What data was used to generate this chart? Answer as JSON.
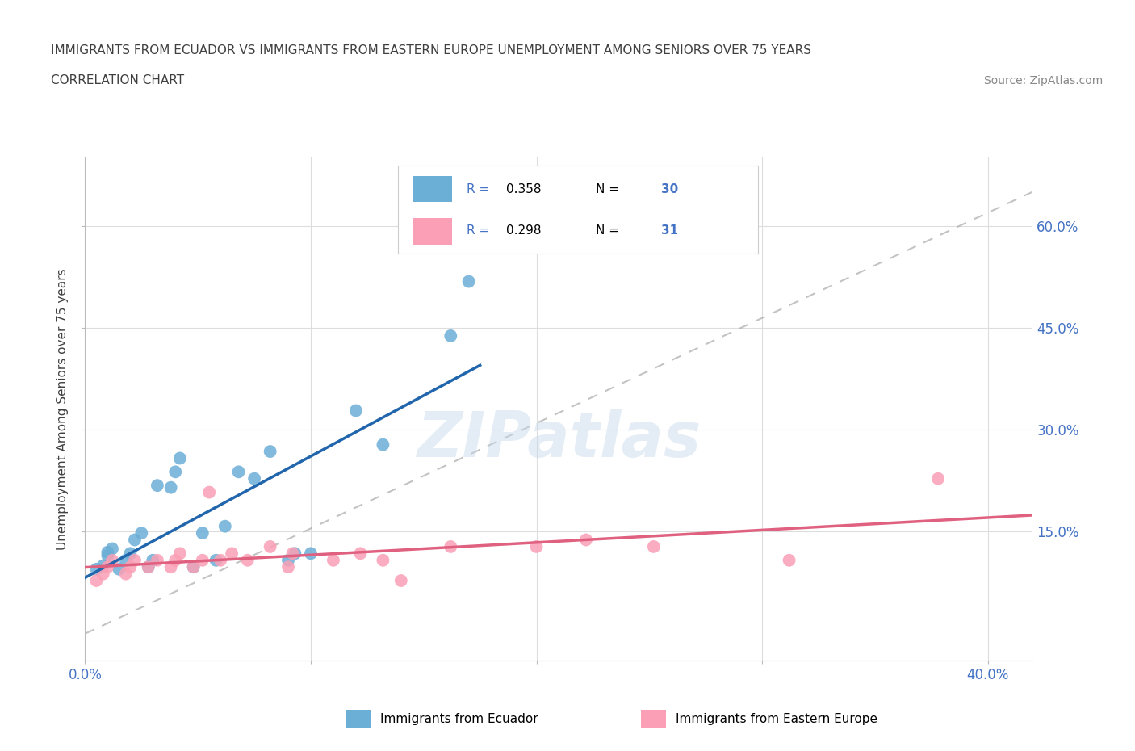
{
  "title_line1": "IMMIGRANTS FROM ECUADOR VS IMMIGRANTS FROM EASTERN EUROPE UNEMPLOYMENT AMONG SENIORS OVER 75 YEARS",
  "title_line2": "CORRELATION CHART",
  "source": "Source: ZipAtlas.com",
  "ylabel": "Unemployment Among Seniors over 75 years",
  "xlim": [
    0.0,
    0.42
  ],
  "ylim": [
    -0.04,
    0.7
  ],
  "ecuador_color": "#6baed6",
  "eastern_europe_color": "#fa9fb5",
  "ecuador_line_color": "#2166ac",
  "eastern_europe_line_color": "#e06080",
  "diag_line_color": "#aaaaaa",
  "ecuador_R": 0.358,
  "ecuador_N": 30,
  "eastern_europe_R": 0.298,
  "eastern_europe_N": 31,
  "ecuador_label": "Immigrants from Ecuador",
  "eastern_europe_label": "Immigrants from Eastern Europe",
  "watermark": "ZIPatlas",
  "blue_text_color": "#4472c4",
  "grid_color": "#dddddd",
  "title_color": "#404040",
  "ecuador_x": [
    0.005,
    0.008,
    0.01,
    0.01,
    0.012,
    0.015,
    0.018,
    0.02,
    0.022,
    0.025,
    0.028,
    0.03,
    0.032,
    0.038,
    0.04,
    0.042,
    0.048,
    0.052,
    0.058,
    0.062,
    0.068,
    0.075,
    0.082,
    0.09,
    0.093,
    0.1,
    0.12,
    0.132,
    0.162,
    0.17
  ],
  "ecuador_y": [
    0.095,
    0.1,
    0.115,
    0.12,
    0.125,
    0.095,
    0.108,
    0.118,
    0.138,
    0.148,
    0.098,
    0.108,
    0.218,
    0.215,
    0.238,
    0.258,
    0.098,
    0.148,
    0.108,
    0.158,
    0.238,
    0.228,
    0.268,
    0.108,
    0.118,
    0.118,
    0.328,
    0.278,
    0.438,
    0.518
  ],
  "eastern_europe_x": [
    0.005,
    0.008,
    0.01,
    0.012,
    0.018,
    0.02,
    0.022,
    0.028,
    0.032,
    0.038,
    0.04,
    0.042,
    0.048,
    0.052,
    0.055,
    0.06,
    0.065,
    0.072,
    0.082,
    0.09,
    0.092,
    0.11,
    0.122,
    0.132,
    0.14,
    0.162,
    0.2,
    0.222,
    0.252,
    0.312,
    0.378
  ],
  "eastern_europe_y": [
    0.078,
    0.088,
    0.098,
    0.108,
    0.088,
    0.098,
    0.108,
    0.098,
    0.108,
    0.098,
    0.108,
    0.118,
    0.098,
    0.108,
    0.208,
    0.108,
    0.118,
    0.108,
    0.128,
    0.098,
    0.118,
    0.108,
    0.118,
    0.108,
    0.078,
    0.128,
    0.128,
    0.138,
    0.128,
    0.108,
    0.228
  ]
}
